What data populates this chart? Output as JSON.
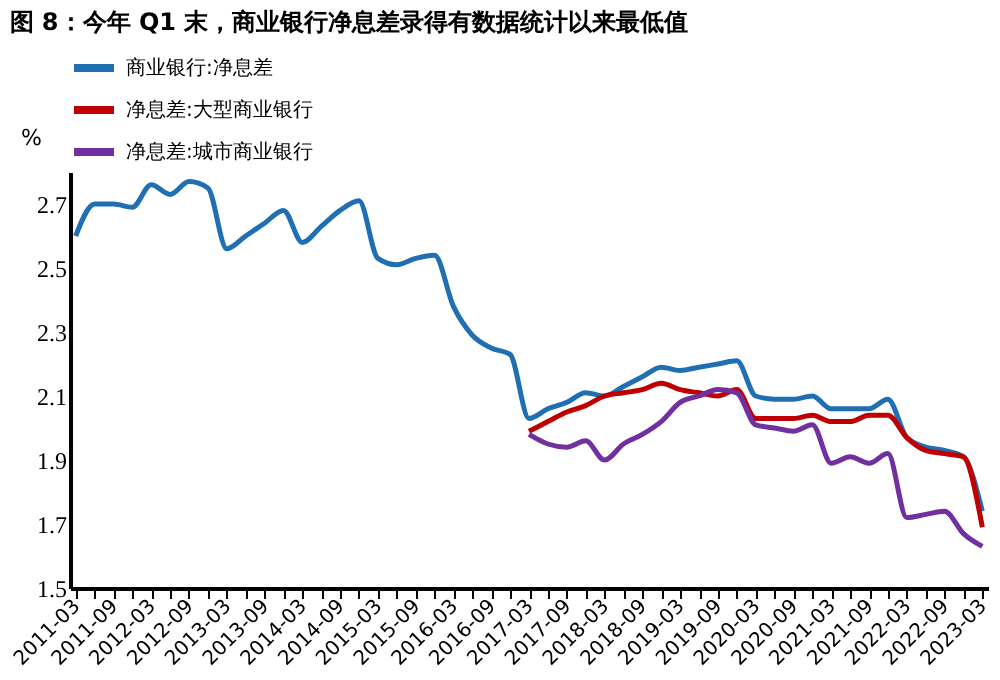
{
  "chart_data": {
    "type": "line",
    "title": "图 8：今年 Q1 末，商业银行净息差录得有数据统计以来最低值",
    "ylabel": "%",
    "categories": [
      "2011-03",
      null,
      "2011-09",
      null,
      "2012-03",
      null,
      "2012-09",
      null,
      "2013-03",
      null,
      "2013-09",
      null,
      "2014-03",
      null,
      "2014-09",
      null,
      "2015-03",
      null,
      "2015-09",
      null,
      "2016-03",
      null,
      "2016-09",
      null,
      "2017-03",
      null,
      "2017-09",
      null,
      "2018-03",
      null,
      "2018-09",
      null,
      "2019-03",
      null,
      "2019-09",
      null,
      "2020-03",
      null,
      "2020-09",
      null,
      "2021-03",
      null,
      "2021-09",
      null,
      "2022-03",
      null,
      "2022-09",
      null,
      "2023-03"
    ],
    "series": [
      {
        "name": "商业银行:净息差",
        "color": "#1f6fb2",
        "values": [
          2.6,
          2.7,
          2.7,
          2.69,
          2.76,
          2.73,
          2.77,
          2.75,
          2.56,
          2.6,
          2.64,
          2.68,
          2.58,
          2.63,
          2.68,
          2.71,
          2.53,
          2.51,
          2.53,
          2.54,
          2.38,
          2.29,
          2.25,
          2.23,
          2.03,
          2.06,
          2.08,
          2.11,
          2.1,
          2.13,
          2.16,
          2.19,
          2.18,
          2.19,
          2.2,
          2.21,
          2.1,
          2.09,
          2.09,
          2.1,
          2.06,
          2.06,
          2.06,
          2.09,
          1.97,
          1.94,
          1.93,
          1.91,
          1.74
        ]
      },
      {
        "name": "净息差:大型商业银行",
        "color": "#c00000",
        "values": [
          null,
          null,
          null,
          null,
          null,
          null,
          null,
          null,
          null,
          null,
          null,
          null,
          null,
          null,
          null,
          null,
          null,
          null,
          null,
          null,
          null,
          null,
          null,
          null,
          1.99,
          2.02,
          2.05,
          2.07,
          2.1,
          2.11,
          2.12,
          2.14,
          2.12,
          2.11,
          2.1,
          2.12,
          2.03,
          2.03,
          2.03,
          2.04,
          2.02,
          2.02,
          2.04,
          2.04,
          1.97,
          1.93,
          1.92,
          1.91,
          1.69
        ]
      },
      {
        "name": "净息差:城市商业银行",
        "color": "#7030a0",
        "values": [
          null,
          null,
          null,
          null,
          null,
          null,
          null,
          null,
          null,
          null,
          null,
          null,
          null,
          null,
          null,
          null,
          null,
          null,
          null,
          null,
          null,
          null,
          null,
          null,
          1.98,
          1.95,
          1.94,
          1.96,
          1.9,
          1.95,
          1.98,
          2.02,
          2.08,
          2.1,
          2.12,
          2.11,
          2.01,
          2.0,
          1.99,
          2.01,
          1.89,
          1.91,
          1.89,
          1.92,
          1.72,
          1.73,
          1.74,
          1.67,
          1.63
        ]
      }
    ],
    "ylim": [
      1.5,
      2.8
    ],
    "yticks": [
      1.5,
      1.7,
      1.9,
      2.1,
      2.3,
      2.5,
      2.7
    ],
    "legend": "top",
    "grid": false
  }
}
